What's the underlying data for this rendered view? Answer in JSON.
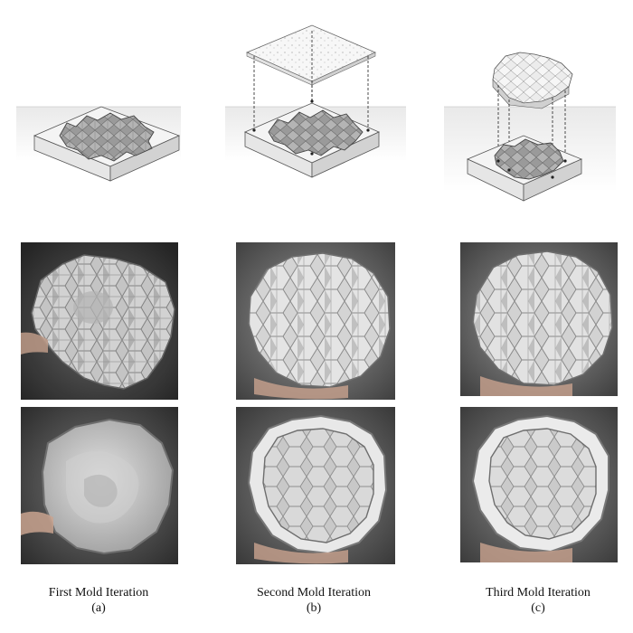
{
  "figure": {
    "columns": [
      {
        "id": "a",
        "caption_title": "First Mold Iteration",
        "caption_letter": "(a)",
        "diagram_icon": "mold-box-with-cavity",
        "photo_top_icon": "cast-front-photo",
        "photo_bottom_icon": "cast-back-photo"
      },
      {
        "id": "b",
        "caption_title": "Second Mold Iteration",
        "caption_letter": "(b)",
        "diagram_icon": "mold-box-with-flat-lid",
        "photo_top_icon": "cast-front-photo",
        "photo_bottom_icon": "cast-back-photo"
      },
      {
        "id": "c",
        "caption_title": "Third Mold Iteration",
        "caption_letter": "(c)",
        "diagram_icon": "mold-box-with-shaped-core",
        "photo_top_icon": "cast-front-photo",
        "photo_bottom_icon": "cast-back-photo"
      }
    ],
    "colors": {
      "background": "#ffffff",
      "mold_top": "#f4f4f4",
      "mold_side_left": "#e6e6e6",
      "mold_side_right": "#d2d2d2",
      "cavity": "#8f8f8f",
      "photo_background": "#3a3a3a",
      "cast_light": "#d8d8d8",
      "cast_shadow": "#8a8a8a",
      "text": "#111111"
    }
  }
}
